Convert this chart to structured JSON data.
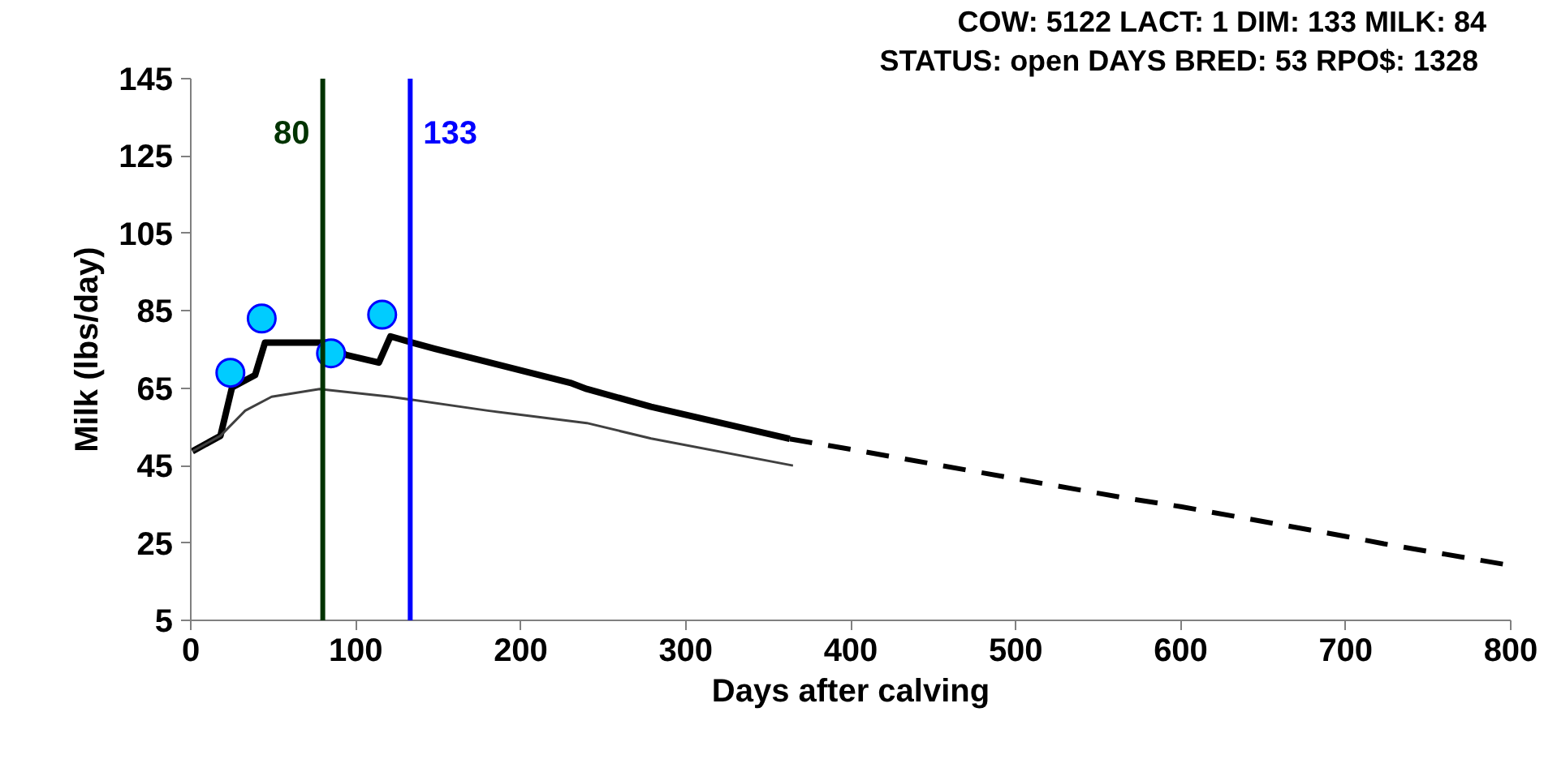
{
  "chart_data": {
    "type": "line",
    "xlabel": "Days after calving",
    "ylabel": "Milk (lbs/day)",
    "annotations": [
      "COW: 5122  LACT: 1  DIM: 133  MILK: 84",
      "STATUS: open    DAYS BRED: 53  RPO$: 1328"
    ],
    "xlim": [
      0,
      800
    ],
    "xticks": [
      0,
      100,
      200,
      300,
      400,
      500,
      600,
      700,
      800
    ],
    "ylim": [
      5,
      145
    ],
    "yticks": [
      5,
      25,
      45,
      65,
      85,
      105,
      125,
      145
    ],
    "grid": false,
    "series": [
      {
        "color": "#000000",
        "line_style": "solid",
        "x": [
          1,
          18,
          25,
          39,
          45,
          82,
          94,
          114,
          121,
          134,
          148,
          174,
          230,
          240,
          279,
          363
        ],
        "values": [
          48.7,
          52.7,
          65.2,
          68.4,
          76.8,
          76.8,
          73.6,
          71.6,
          78.4,
          76.8,
          75.2,
          72.4,
          66.4,
          64.8,
          60.2,
          51.9
        ]
      },
      {
        "color": "#000000",
        "line_style": "dashed",
        "x": [
          363,
          400,
          500,
          571,
          600,
          700,
          723,
          800
        ],
        "values": [
          51.9,
          49.2,
          41.6,
          36.3,
          34.4,
          26.7,
          24.8,
          19.2
        ]
      },
      {
        "color": "#404040",
        "line_style": "solid",
        "x": [
          1,
          18,
          33,
          49,
          78,
          121,
          180,
          240,
          279,
          365
        ],
        "values": [
          48.7,
          52.7,
          59.2,
          62.8,
          64.8,
          62.8,
          59.2,
          56,
          52,
          45
        ]
      },
      {
        "type": "scatter",
        "color": "#00ccff",
        "marker": "circle",
        "x": [
          24,
          43,
          85,
          116
        ],
        "values": [
          69,
          83,
          74,
          84
        ]
      }
    ],
    "ref_lines": [
      {
        "axis": "x",
        "value": 80,
        "label": "80",
        "color": "#003300"
      },
      {
        "axis": "x",
        "value": 133,
        "label": "133",
        "color": "#0000ff"
      }
    ]
  }
}
